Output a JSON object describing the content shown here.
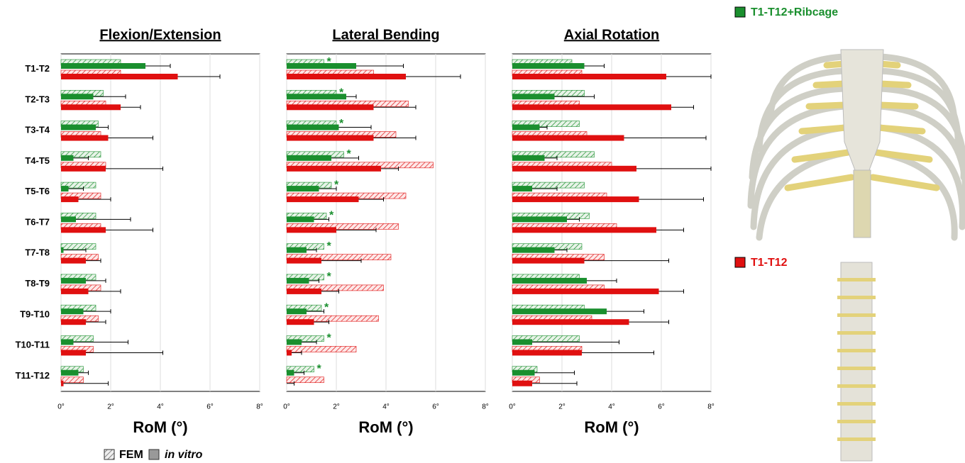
{
  "legend": {
    "styles": [
      "FEM",
      "in vitro"
    ],
    "models": [
      "T1-T12+Ribcage",
      "T1-T12"
    ]
  },
  "chart_data": [
    {
      "type": "bar",
      "horizontal": true,
      "title": "Flexion/Extension",
      "xlabel": "RoM (°)",
      "categories": [
        "T1-T2",
        "T2-T3",
        "T3-T4",
        "T4-T5",
        "T5-T6",
        "T6-T7",
        "T7-T8",
        "T8-T9",
        "T9-T10",
        "T10-T11",
        "T11-T12"
      ],
      "xlim": [
        0,
        8
      ],
      "xticks": [
        {
          "value": 0,
          "label": "0°"
        },
        {
          "value": 2,
          "label": "2°"
        },
        {
          "value": 4,
          "label": "4°"
        },
        {
          "value": 6,
          "label": "6°"
        },
        {
          "value": 8,
          "label": "8°"
        }
      ],
      "grid": true,
      "series": [
        {
          "color": "#1a8f2e",
          "hatch": true,
          "values": [
            2.4,
            1.7,
            1.5,
            1.6,
            1.4,
            1.4,
            1.4,
            1.4,
            1.4,
            1.3,
            0.9
          ]
        },
        {
          "color": "#1a8f2e",
          "hatch": false,
          "values": [
            3.4,
            1.3,
            1.4,
            0.5,
            0.3,
            0.6,
            0.1,
            1.0,
            0.9,
            0.5,
            0.7
          ],
          "errors": [
            1.0,
            1.3,
            0.5,
            0.6,
            0.6,
            2.2,
            0.9,
            0.8,
            1.1,
            2.2,
            0.4
          ]
        },
        {
          "color": "#e01010",
          "hatch": true,
          "values": [
            2.4,
            1.8,
            1.6,
            1.8,
            1.6,
            1.6,
            1.5,
            1.6,
            1.5,
            1.3,
            0.9
          ]
        },
        {
          "color": "#e01010",
          "hatch": false,
          "values": [
            4.7,
            2.4,
            1.9,
            1.8,
            0.7,
            1.8,
            1.0,
            1.1,
            1.0,
            1.0,
            0.1
          ],
          "errors": [
            1.7,
            0.8,
            1.8,
            2.3,
            1.3,
            1.9,
            0.6,
            1.3,
            0.8,
            3.1,
            1.8
          ]
        }
      ]
    },
    {
      "type": "bar",
      "horizontal": true,
      "title": "Lateral Bending",
      "xlabel": "RoM (°)",
      "xlim": [
        0,
        8
      ],
      "xticks": [
        {
          "value": 0,
          "label": "0°"
        },
        {
          "value": 2,
          "label": "2°"
        },
        {
          "value": 4,
          "label": "4°"
        },
        {
          "value": 6,
          "label": "6°"
        },
        {
          "value": 8,
          "label": "8°"
        }
      ],
      "grid": true,
      "annotations": [
        "*",
        "*",
        "*",
        "*",
        "*",
        "*",
        "*",
        "*",
        "*",
        "*",
        "*"
      ],
      "series": [
        {
          "color": "#1a8f2e",
          "hatch": true,
          "values": [
            1.5,
            2.0,
            2.0,
            2.3,
            1.8,
            1.6,
            1.5,
            1.5,
            1.4,
            1.5,
            1.1
          ]
        },
        {
          "color": "#1a8f2e",
          "hatch": false,
          "values": [
            2.8,
            2.4,
            2.1,
            1.8,
            1.3,
            1.1,
            0.8,
            0.9,
            0.8,
            0.6,
            0.3
          ],
          "errors": [
            1.9,
            0.4,
            1.3,
            1.1,
            0.7,
            0.6,
            0.4,
            0.4,
            0.7,
            0.6,
            0.4
          ]
        },
        {
          "color": "#e01010",
          "hatch": true,
          "values": [
            3.5,
            4.9,
            4.4,
            5.9,
            4.8,
            4.5,
            4.2,
            3.9,
            3.7,
            2.8,
            1.5
          ]
        },
        {
          "color": "#e01010",
          "hatch": false,
          "values": [
            4.8,
            3.5,
            3.5,
            3.8,
            2.9,
            2.0,
            1.4,
            1.4,
            1.1,
            0.2,
            0.0
          ],
          "errors": [
            2.2,
            1.7,
            1.7,
            0.7,
            1.0,
            1.6,
            1.6,
            0.7,
            0.6,
            0.4,
            0.3
          ]
        }
      ]
    },
    {
      "type": "bar",
      "horizontal": true,
      "title": "Axial Rotation",
      "xlabel": "RoM (°)",
      "xlim": [
        0,
        8
      ],
      "xticks": [
        {
          "value": 0,
          "label": "0°"
        },
        {
          "value": 2,
          "label": "2°"
        },
        {
          "value": 4,
          "label": "4°"
        },
        {
          "value": 6,
          "label": "6°"
        },
        {
          "value": 8,
          "label": "8°"
        }
      ],
      "grid": true,
      "series": [
        {
          "color": "#1a8f2e",
          "hatch": true,
          "values": [
            2.4,
            2.9,
            2.7,
            3.3,
            2.9,
            3.1,
            2.8,
            2.7,
            2.9,
            2.7,
            1.0
          ]
        },
        {
          "color": "#1a8f2e",
          "hatch": false,
          "values": [
            2.9,
            1.7,
            1.1,
            1.3,
            0.8,
            2.2,
            1.7,
            3.0,
            3.8,
            0.8,
            0.9
          ],
          "errors": [
            0.8,
            1.6,
            0.3,
            0.5,
            1.0,
            0.5,
            0.5,
            1.2,
            1.5,
            3.5,
            1.6
          ]
        },
        {
          "color": "#e01010",
          "hatch": true,
          "values": [
            2.8,
            2.7,
            3.0,
            4.0,
            3.8,
            4.2,
            3.7,
            3.7,
            3.2,
            2.8,
            1.1
          ]
        },
        {
          "color": "#e01010",
          "hatch": false,
          "values": [
            6.2,
            6.4,
            4.5,
            5.0,
            5.1,
            5.8,
            2.9,
            5.9,
            4.7,
            2.8,
            0.8
          ],
          "errors": [
            1.8,
            0.9,
            3.3,
            3.0,
            2.6,
            1.1,
            3.4,
            1.0,
            1.6,
            2.9,
            1.8
          ]
        }
      ]
    }
  ]
}
